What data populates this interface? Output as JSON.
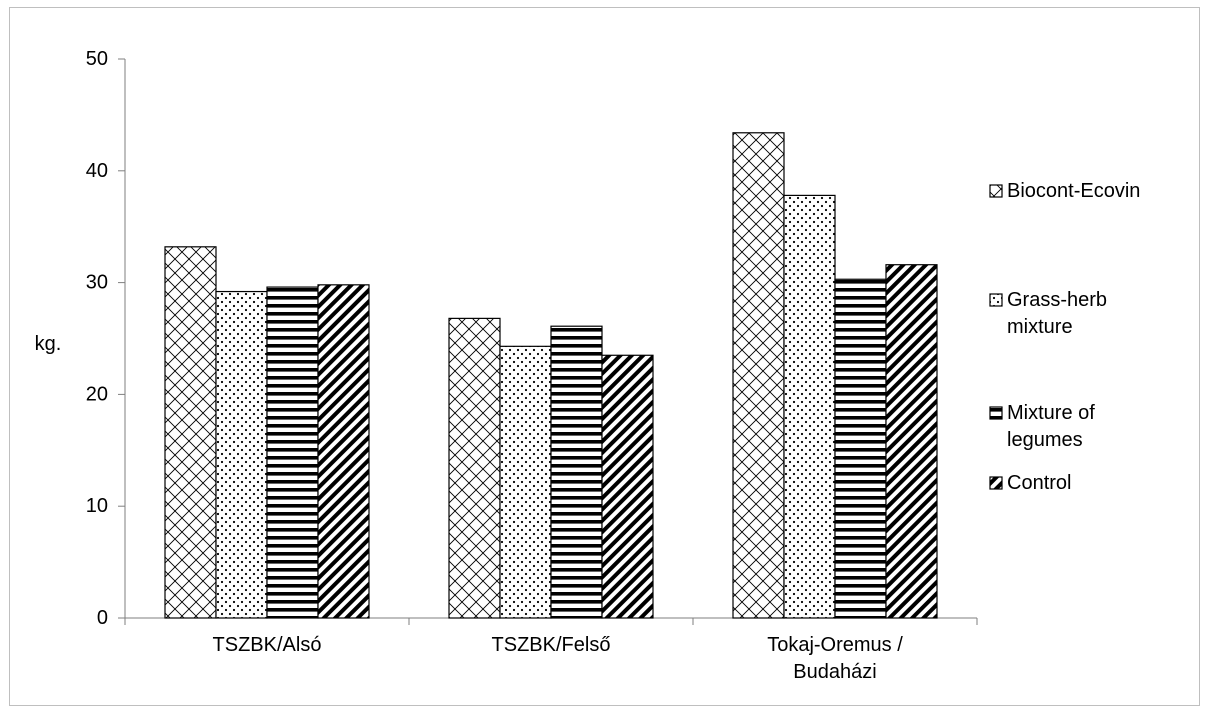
{
  "chart_data": {
    "type": "bar",
    "title": "",
    "xlabel": "",
    "ylabel": "kg.",
    "ylim": [
      0,
      50
    ],
    "yticks": [
      0,
      10,
      20,
      30,
      40,
      50
    ],
    "grid": false,
    "legend_position": "right",
    "categories": [
      [
        "TSZBK/Alsó"
      ],
      [
        "TSZBK/Felső"
      ],
      [
        "Tokaj-Oremus /",
        "Budaházi"
      ]
    ],
    "series": [
      {
        "name": [
          "Biocont-Ecovin"
        ],
        "pattern": "crosshatch-diagonal",
        "values": [
          33.2,
          26.8,
          43.4
        ]
      },
      {
        "name": [
          "Grass-herb",
          "mixture"
        ],
        "pattern": "dots",
        "values": [
          29.2,
          24.3,
          37.8
        ]
      },
      {
        "name": [
          "Mixture of",
          "legumes"
        ],
        "pattern": "horizontal-lines",
        "values": [
          29.6,
          26.1,
          30.3
        ]
      },
      {
        "name": [
          "Control"
        ],
        "pattern": "wide-diagonal",
        "values": [
          29.8,
          23.5,
          31.6
        ]
      }
    ],
    "colors": {
      "stroke": "#000000",
      "background": "#ffffff",
      "axis": "#7f7f7f",
      "frame": "#bfbfbf"
    }
  }
}
